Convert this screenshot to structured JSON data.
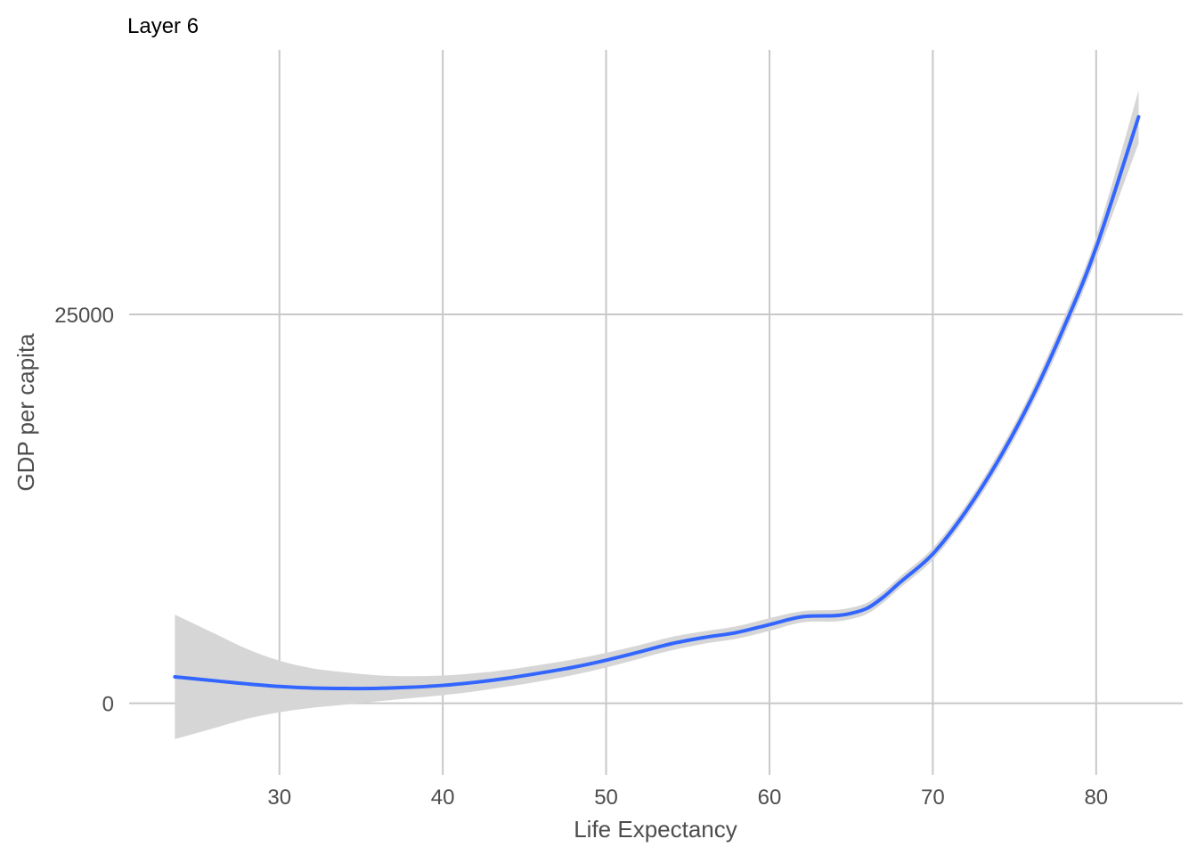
{
  "chart_data": {
    "type": "line",
    "title": "Layer 6",
    "xlabel": "Life Expectancy",
    "ylabel": "GDP per capita",
    "xlim": [
      20.8,
      85.3
    ],
    "ylim": [
      -4600,
      42000
    ],
    "x_ticks": [
      30,
      40,
      50,
      60,
      70,
      80
    ],
    "y_ticks": [
      0,
      25000
    ],
    "x_tick_labels": [
      "30",
      "40",
      "50",
      "60",
      "70",
      "80"
    ],
    "y_tick_labels": [
      "0",
      "25000"
    ],
    "grid": true,
    "legend": "none",
    "colors": {
      "line": "#3366ff",
      "band": "#d6d6d6",
      "grid": "#c8c8c8"
    },
    "series": [
      {
        "x": [
          23.6,
          26,
          28,
          30,
          32,
          34,
          36,
          38,
          40,
          42,
          44,
          46,
          48,
          50,
          52,
          54,
          56,
          58,
          60,
          62,
          64,
          65,
          66,
          67,
          68,
          70,
          72,
          74,
          76,
          78,
          80,
          82.6
        ],
        "y": [
          1700,
          1450,
          1250,
          1080,
          980,
          950,
          960,
          1030,
          1150,
          1350,
          1620,
          1950,
          2320,
          2770,
          3290,
          3830,
          4230,
          4550,
          5060,
          5560,
          5630,
          5780,
          6120,
          6850,
          7780,
          9600,
          12300,
          15600,
          19500,
          24100,
          29300,
          37700
        ],
        "lower": [
          -2300,
          -1600,
          -1000,
          -580,
          -290,
          -90,
          120,
          320,
          520,
          770,
          1080,
          1420,
          1820,
          2300,
          2850,
          3400,
          3830,
          4150,
          4650,
          5200,
          5260,
          5410,
          5760,
          6490,
          7420,
          9220,
          11900,
          15150,
          19000,
          23500,
          28600,
          36000
        ],
        "upper": [
          5700,
          4500,
          3500,
          2740,
          2250,
          1990,
          1800,
          1740,
          1780,
          1930,
          2160,
          2480,
          2820,
          3240,
          3730,
          4260,
          4630,
          4950,
          5470,
          5920,
          6000,
          6150,
          6480,
          7210,
          8140,
          9980,
          12700,
          16050,
          20000,
          24700,
          30000,
          39400
        ]
      }
    ]
  }
}
